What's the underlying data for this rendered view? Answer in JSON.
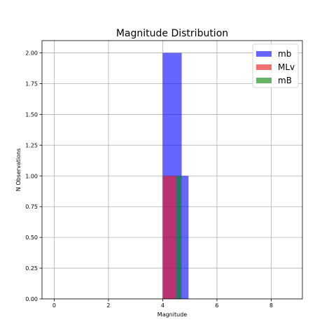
{
  "chart_data": {
    "type": "bar",
    "title": "Magnitude Distribution",
    "xlabel": "Magnitude",
    "ylabel": "N Observations",
    "xlim": [
      -0.45,
      9.15
    ],
    "ylim": [
      0,
      2.1
    ],
    "xticks": [
      0,
      2,
      4,
      6,
      8
    ],
    "xtick_labels": [
      "0",
      "2",
      "4",
      "6",
      "8"
    ],
    "yticks": [
      0,
      0.25,
      0.5,
      0.75,
      1.0,
      1.25,
      1.5,
      1.75,
      2.0
    ],
    "ytick_labels": [
      "0.00",
      "0.25",
      "0.50",
      "0.75",
      "1.00",
      "1.25",
      "1.50",
      "1.75",
      "2.00"
    ],
    "grid": true,
    "legend_position": "top-right",
    "series": [
      {
        "name": "mb",
        "color": "#0000ff",
        "opacity": 0.6,
        "bins": [
          {
            "x0": 4.0,
            "x1": 4.7,
            "value": 2
          },
          {
            "x0": 4.7,
            "x1": 4.95,
            "value": 1
          }
        ]
      },
      {
        "name": "MLv",
        "color": "#ee1111",
        "opacity": 0.6,
        "bins": [
          {
            "x0": 4.0,
            "x1": 4.5,
            "value": 1
          }
        ]
      },
      {
        "name": "mB",
        "color": "#008000",
        "opacity": 0.6,
        "bins": [
          {
            "x0": 4.5,
            "x1": 4.7,
            "value": 1
          }
        ]
      }
    ]
  }
}
